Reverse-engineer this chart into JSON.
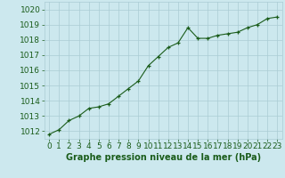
{
  "x": [
    0,
    1,
    2,
    3,
    4,
    5,
    6,
    7,
    8,
    9,
    10,
    11,
    12,
    13,
    14,
    15,
    16,
    17,
    18,
    19,
    20,
    21,
    22,
    23
  ],
  "y": [
    1011.8,
    1012.1,
    1012.7,
    1013.0,
    1013.5,
    1013.6,
    1013.8,
    1014.3,
    1014.8,
    1015.3,
    1016.3,
    1016.9,
    1017.5,
    1017.8,
    1018.8,
    1018.1,
    1018.1,
    1018.3,
    1018.4,
    1018.5,
    1018.8,
    1019.0,
    1019.4,
    1019.5
  ],
  "line_color": "#1a5c1a",
  "marker": "+",
  "marker_color": "#1a5c1a",
  "bg_color": "#cce8ee",
  "grid_color": "#aaccd4",
  "xlabel": "Graphe pression niveau de la mer (hPa)",
  "xlabel_color": "#1a5c1a",
  "ylabel_ticks": [
    1012,
    1013,
    1014,
    1015,
    1016,
    1017,
    1018,
    1019,
    1020
  ],
  "ylim": [
    1011.5,
    1020.5
  ],
  "xlim": [
    -0.5,
    23.5
  ],
  "tick_color": "#1a5c1a",
  "font_size_xlabel": 7.0,
  "font_size_ticks": 6.5
}
